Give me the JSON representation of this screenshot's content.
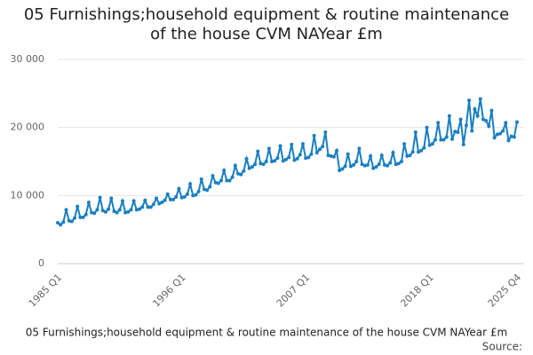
{
  "chart_data": {
    "type": "line",
    "title": "05 Furnishings;household equipment & routine maintenance of the house CVM NAYear £m",
    "caption": "05 Furnishings;household equipment & routine maintenance of the house CVM NAYear £m",
    "source": "Source:",
    "color": "#1a7fc1",
    "grid": true,
    "ylim": [
      0,
      30000
    ],
    "yticks": [
      0,
      {
        "value": 10000,
        "label": "10 000"
      },
      {
        "value": 20000,
        "label": "20 000"
      },
      {
        "value": 30000,
        "label": "30 000"
      }
    ],
    "categories": [
      "1985 Q1",
      null,
      null,
      null,
      null,
      null,
      null,
      null,
      null,
      null,
      null,
      null,
      null,
      null,
      null,
      null,
      null,
      null,
      null,
      null,
      null,
      null,
      null,
      null,
      null,
      null,
      null,
      null,
      null,
      null,
      null,
      null,
      null,
      null,
      null,
      null,
      null,
      null,
      null,
      null,
      null,
      null,
      null,
      null,
      "1996 Q1",
      null,
      null,
      null,
      null,
      null,
      null,
      null,
      null,
      null,
      null,
      null,
      null,
      null,
      null,
      null,
      null,
      null,
      null,
      null,
      null,
      null,
      null,
      null,
      null,
      null,
      null,
      null,
      null,
      null,
      null,
      null,
      null,
      null,
      null,
      null,
      null,
      null,
      null,
      null,
      null,
      null,
      null,
      null,
      "2007 Q1",
      null,
      null,
      null,
      null,
      null,
      null,
      null,
      null,
      null,
      null,
      null,
      null,
      null,
      null,
      null,
      null,
      null,
      null,
      null,
      null,
      null,
      null,
      null,
      null,
      null,
      null,
      null,
      null,
      null,
      null,
      null,
      null,
      null,
      null,
      null,
      null,
      null,
      null,
      null,
      null,
      null,
      null,
      null,
      "2018 Q1",
      null,
      null,
      null,
      null,
      null,
      null,
      null,
      null,
      null,
      null,
      null,
      null,
      null,
      null,
      null,
      null,
      null,
      null,
      null,
      null,
      null,
      null,
      null,
      null,
      null,
      null,
      null,
      null,
      null,
      null,
      "2025 Q4"
    ],
    "values": [
      6000,
      5700,
      6100,
      7900,
      6300,
      6200,
      6700,
      8400,
      6800,
      6800,
      7200,
      9000,
      7500,
      7400,
      7900,
      9700,
      7800,
      7600,
      8000,
      9600,
      7700,
      7500,
      7900,
      9200,
      7500,
      7600,
      7900,
      9200,
      7900,
      8000,
      8300,
      9300,
      8300,
      8300,
      8700,
      9600,
      8800,
      9000,
      9300,
      10200,
      9400,
      9400,
      9800,
      11000,
      9700,
      9800,
      10200,
      11700,
      10000,
      10100,
      10600,
      12400,
      10900,
      10800,
      11300,
      12900,
      11900,
      11800,
      12200,
      13700,
      12200,
      12200,
      12700,
      14400,
      13200,
      13100,
      13600,
      15400,
      14000,
      14200,
      14600,
      16500,
      14700,
      14600,
      15000,
      16900,
      15000,
      15100,
      15500,
      17300,
      15100,
      15300,
      15600,
      17500,
      15200,
      15400,
      16000,
      17600,
      15500,
      15600,
      16100,
      18800,
      16300,
      16800,
      17200,
      19300,
      15900,
      15800,
      15700,
      16600,
      13700,
      13900,
      14300,
      16100,
      14300,
      14500,
      15000,
      16900,
      14600,
      14400,
      14500,
      15800,
      14000,
      14200,
      14600,
      15900,
      14500,
      14400,
      14800,
      16300,
      14600,
      14700,
      15000,
      17600,
      15800,
      15900,
      16400,
      19300,
      16400,
      16600,
      17000,
      20000,
      17400,
      17600,
      18200,
      20700,
      18200,
      18200,
      18600,
      21700,
      18300,
      19400,
      19300,
      21200,
      17500,
      20300,
      24000,
      19500,
      22700,
      21700,
      24200,
      21200,
      21000,
      20200,
      22500,
      18500,
      19000,
      19100,
      19500,
      20700,
      18100,
      18700,
      18600,
      20800
    ]
  }
}
